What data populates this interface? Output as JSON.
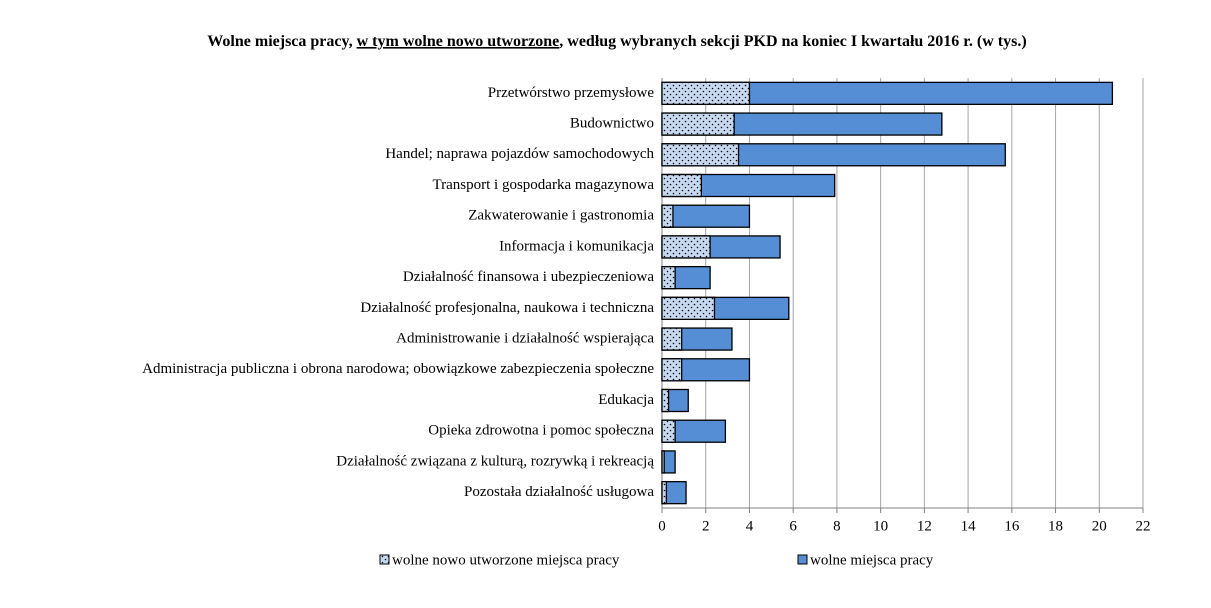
{
  "chart_data": {
    "type": "bar",
    "orientation": "horizontal",
    "overlap": true,
    "title": [
      "Wolne miejsca pracy, ",
      "w tym wolne nowo utworzone",
      ", według wybranych sekcji PKD na koniec I kwartału 2016 r. (w tys.)"
    ],
    "categories": [
      "Przetwórstwo przemysłowe",
      "Budownictwo",
      "Handel; naprawa pojazdów samochodowych",
      "Transport i gospodarka magazynowa",
      "Zakwaterowanie i gastronomia",
      "Informacja i komunikacja",
      "Działalność finansowa i ubezpieczeniowa",
      "Działalność profesjonalna, naukowa i techniczna",
      "Administrowanie i działalność wspierająca",
      "Administracja publiczna i obrona narodowa; obowiązkowe zabezpieczenia społeczne",
      "Edukacja",
      "Opieka zdrowotna i pomoc społeczna",
      "Działalność związana z kulturą, rozrywką i rekreacją",
      "Pozostała działalność usługowa"
    ],
    "series": [
      {
        "name": "wolne nowo utworzone miejsca pracy",
        "color": "#c6d9f1",
        "hatch": "dots",
        "values": [
          4.0,
          3.3,
          3.5,
          1.8,
          0.5,
          2.2,
          0.6,
          2.4,
          0.9,
          0.9,
          0.3,
          0.6,
          0.1,
          0.2
        ]
      },
      {
        "name": "wolne miejsca pracy",
        "color": "#558ed5",
        "values": [
          20.6,
          12.8,
          15.7,
          7.9,
          4.0,
          5.4,
          2.2,
          5.8,
          3.2,
          4.0,
          1.2,
          2.9,
          0.6,
          1.1
        ]
      }
    ],
    "xlim": [
      0,
      22
    ],
    "xticks": [
      0,
      2,
      4,
      6,
      8,
      10,
      12,
      14,
      16,
      18,
      20,
      22
    ],
    "grid": true,
    "legend": "bottom"
  }
}
